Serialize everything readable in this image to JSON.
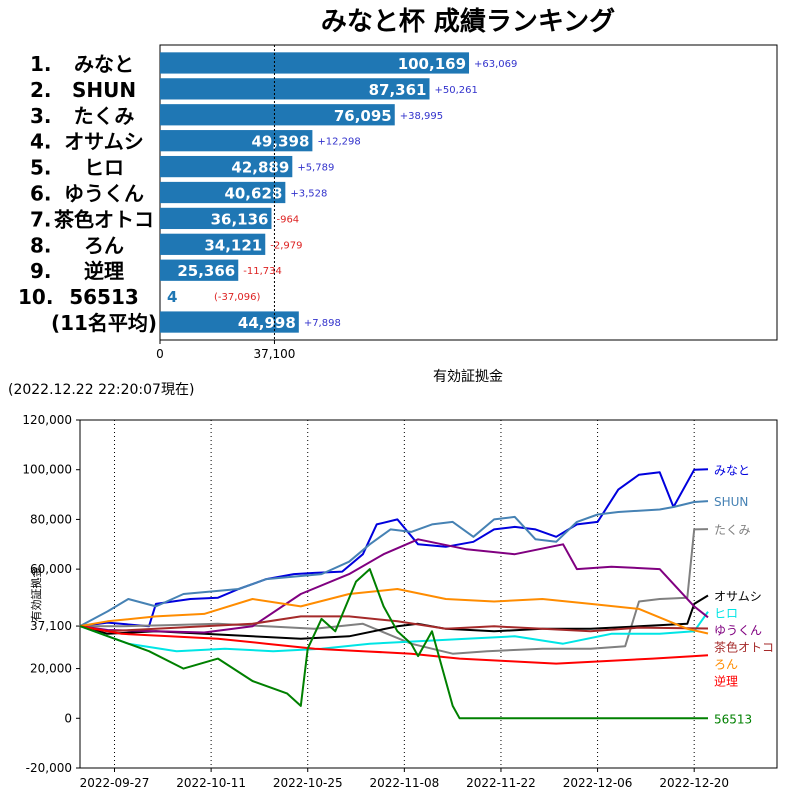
{
  "chart_data": [
    {
      "type": "bar",
      "orientation": "horizontal",
      "title": "みなと杯 成績ランキング",
      "xlabel": "有効証拠金",
      "xlim": [
        0,
        200000
      ],
      "x_ticks": [
        0,
        37100
      ],
      "x_tick_labels": [
        "0",
        "37,100"
      ],
      "reference_line": 37100,
      "bar_color": "#1f77b4",
      "rows": [
        {
          "rank": "1.",
          "name": "みなと",
          "value": 100169,
          "value_label": "100,169",
          "diff": "+63,069",
          "diff_color": "#3333cc"
        },
        {
          "rank": "2.",
          "name": "SHUN",
          "value": 87361,
          "value_label": "87,361",
          "diff": "+50,261",
          "diff_color": "#3333cc"
        },
        {
          "rank": "3.",
          "name": "たくみ",
          "value": 76095,
          "value_label": "76,095",
          "diff": "+38,995",
          "diff_color": "#3333cc"
        },
        {
          "rank": "4.",
          "name": "オサムシ",
          "value": 49398,
          "value_label": "49,398",
          "diff": "+12,298",
          "diff_color": "#3333cc"
        },
        {
          "rank": "5.",
          "name": "ヒロ",
          "value": 42889,
          "value_label": "42,889",
          "diff": "+5,789",
          "diff_color": "#3333cc"
        },
        {
          "rank": "6.",
          "name": "ゆうくん",
          "value": 40628,
          "value_label": "40,628",
          "diff": "+3,528",
          "diff_color": "#3333cc"
        },
        {
          "rank": "7.",
          "name": "茶色オトコ",
          "value": 36136,
          "value_label": "36,136",
          "diff": "-964",
          "diff_color": "#dd2222"
        },
        {
          "rank": "8.",
          "name": "ろん",
          "value": 34121,
          "value_label": "34,121",
          "diff": "-2,979",
          "diff_color": "#dd2222"
        },
        {
          "rank": "9.",
          "name": "逆理",
          "value": 25366,
          "value_label": "25,366",
          "diff": "-11,734",
          "diff_color": "#dd2222"
        },
        {
          "rank": "10.",
          "name": "56513",
          "value": 4,
          "value_label": "4",
          "diff": "(-37,096)",
          "diff_color": "#dd2222"
        },
        {
          "rank": "",
          "name": "(11名平均)",
          "value": 44998,
          "value_label": "44,998",
          "diff": "+7,898",
          "diff_color": "#3333cc"
        }
      ]
    },
    {
      "type": "line",
      "timestamp": "(2022.12.22 22:20:07現在)",
      "ylabel": "有効証拠金",
      "ylim": [
        -20000,
        120000
      ],
      "y_ticks": [
        -20000,
        0,
        20000,
        37100,
        60000,
        80000,
        100000,
        120000
      ],
      "y_tick_labels": [
        "-20,000",
        "0",
        "20,000",
        "37,100",
        "60,000",
        "80,000",
        "100,000",
        "120,000"
      ],
      "xlim": [
        "2022-09-22",
        "2023-01-01"
      ],
      "x_ticks": [
        "2022-09-27",
        "2022-10-11",
        "2022-10-25",
        "2022-11-08",
        "2022-11-22",
        "2022-12-06",
        "2022-12-20"
      ],
      "series": [
        {
          "name": "みなと",
          "color": "#0000dd",
          "x": [
            "2022-09-22",
            "2022-09-26",
            "2022-10-02",
            "2022-10-03",
            "2022-10-08",
            "2022-10-12",
            "2022-10-15",
            "2022-10-19",
            "2022-10-23",
            "2022-10-26",
            "2022-10-30",
            "2022-11-02",
            "2022-11-04",
            "2022-11-07",
            "2022-11-10",
            "2022-11-14",
            "2022-11-18",
            "2022-11-21",
            "2022-11-24",
            "2022-11-27",
            "2022-11-30",
            "2022-12-03",
            "2022-12-06",
            "2022-12-09",
            "2022-12-12",
            "2022-12-15",
            "2022-12-17",
            "2022-12-20",
            "2022-12-22"
          ],
          "y": [
            37100,
            38500,
            37000,
            46000,
            48000,
            48500,
            52000,
            56000,
            58000,
            58500,
            59000,
            66000,
            78000,
            80000,
            70000,
            69000,
            71000,
            76000,
            77000,
            76000,
            73000,
            78000,
            79000,
            92000,
            98000,
            99000,
            85000,
            100000,
            100169
          ]
        },
        {
          "name": "SHUN",
          "color": "#4682b4",
          "x": [
            "2022-09-22",
            "2022-09-26",
            "2022-09-29",
            "2022-10-03",
            "2022-10-07",
            "2022-10-11",
            "2022-10-15",
            "2022-10-19",
            "2022-10-23",
            "2022-10-27",
            "2022-10-31",
            "2022-11-03",
            "2022-11-06",
            "2022-11-09",
            "2022-11-12",
            "2022-11-15",
            "2022-11-18",
            "2022-11-21",
            "2022-11-24",
            "2022-11-27",
            "2022-11-30",
            "2022-12-03",
            "2022-12-06",
            "2022-12-09",
            "2022-12-12",
            "2022-12-15",
            "2022-12-17",
            "2022-12-20",
            "2022-12-22"
          ],
          "y": [
            37100,
            43000,
            48000,
            45000,
            50000,
            51000,
            52000,
            56000,
            57000,
            58000,
            63000,
            70000,
            76000,
            75000,
            78000,
            79000,
            73000,
            80000,
            81000,
            72000,
            71000,
            79000,
            82000,
            83000,
            83500,
            84000,
            85000,
            87000,
            87361
          ]
        },
        {
          "name": "たくみ",
          "color": "#808080",
          "x": [
            "2022-09-22",
            "2022-09-28",
            "2022-10-05",
            "2022-10-12",
            "2022-10-19",
            "2022-10-26",
            "2022-11-02",
            "2022-11-09",
            "2022-11-15",
            "2022-11-20",
            "2022-11-28",
            "2022-12-05",
            "2022-12-10",
            "2022-12-12",
            "2022-12-15",
            "2022-12-19",
            "2022-12-20",
            "2022-12-22"
          ],
          "y": [
            37100,
            37000,
            37500,
            38000,
            37000,
            36000,
            38000,
            30000,
            26000,
            27000,
            28000,
            28000,
            29000,
            47000,
            48000,
            48500,
            76000,
            76095
          ]
        },
        {
          "name": "オサムシ",
          "color": "#000000",
          "x": [
            "2022-09-22",
            "2022-09-26",
            "2022-10-03",
            "2022-10-10",
            "2022-10-17",
            "2022-10-24",
            "2022-10-31",
            "2022-11-07",
            "2022-11-10",
            "2022-11-14",
            "2022-11-21",
            "2022-11-28",
            "2022-12-05",
            "2022-12-12",
            "2022-12-19",
            "2022-12-20",
            "2022-12-22"
          ],
          "y": [
            37100,
            34000,
            35000,
            34000,
            33000,
            32000,
            33000,
            37000,
            38000,
            36000,
            35000,
            36000,
            36000,
            37000,
            38000,
            46000,
            49398
          ]
        },
        {
          "name": "ヒロ",
          "color": "#00e5e5",
          "x": [
            "2022-09-22",
            "2022-09-29",
            "2022-10-06",
            "2022-10-13",
            "2022-10-20",
            "2022-10-27",
            "2022-11-03",
            "2022-11-10",
            "2022-11-17",
            "2022-11-24",
            "2022-12-01",
            "2022-12-08",
            "2022-12-15",
            "2022-12-20",
            "2022-12-22"
          ],
          "y": [
            37100,
            30000,
            27000,
            28000,
            27000,
            28000,
            30000,
            31000,
            32000,
            33000,
            30000,
            34000,
            34000,
            35000,
            42889
          ]
        },
        {
          "name": "ゆうくん",
          "color": "#800080",
          "x": [
            "2022-09-22",
            "2022-09-26",
            "2022-10-03",
            "2022-10-10",
            "2022-10-17",
            "2022-10-24",
            "2022-10-31",
            "2022-11-05",
            "2022-11-10",
            "2022-11-17",
            "2022-11-24",
            "2022-12-01",
            "2022-12-03",
            "2022-12-08",
            "2022-12-15",
            "2022-12-20",
            "2022-12-22"
          ],
          "y": [
            37100,
            35500,
            35000,
            34500,
            37000,
            50000,
            58000,
            66000,
            72000,
            68000,
            66000,
            70000,
            60000,
            61000,
            60000,
            45000,
            40628
          ]
        },
        {
          "name": "茶色オトコ",
          "color": "#a52a2a",
          "x": [
            "2022-09-22",
            "2022-09-26",
            "2022-10-03",
            "2022-10-10",
            "2022-10-17",
            "2022-10-24",
            "2022-10-31",
            "2022-11-07",
            "2022-11-14",
            "2022-11-21",
            "2022-11-28",
            "2022-12-05",
            "2022-12-12",
            "2022-12-19",
            "2022-12-22"
          ],
          "y": [
            37100,
            35000,
            36000,
            37000,
            38000,
            41000,
            41000,
            39000,
            36000,
            37000,
            36000,
            35000,
            36500,
            36200,
            36136
          ]
        },
        {
          "name": "ろん",
          "color": "#ff8c00",
          "x": [
            "2022-09-22",
            "2022-09-26",
            "2022-10-03",
            "2022-10-10",
            "2022-10-17",
            "2022-10-24",
            "2022-10-31",
            "2022-11-07",
            "2022-11-14",
            "2022-11-21",
            "2022-11-28",
            "2022-12-05",
            "2022-12-12",
            "2022-12-19",
            "2022-12-22"
          ],
          "y": [
            37100,
            39000,
            41000,
            42000,
            48000,
            45000,
            50000,
            52000,
            48000,
            47000,
            48000,
            46000,
            44000,
            36000,
            34121
          ]
        },
        {
          "name": "逆理",
          "color": "#ff0000",
          "x": [
            "2022-09-22",
            "2022-09-28",
            "2022-10-05",
            "2022-10-12",
            "2022-10-19",
            "2022-10-26",
            "2022-11-02",
            "2022-11-09",
            "2022-11-16",
            "2022-11-23",
            "2022-11-30",
            "2022-12-07",
            "2022-12-14",
            "2022-12-20",
            "2022-12-22"
          ],
          "y": [
            37100,
            34000,
            33000,
            32000,
            30000,
            28000,
            27000,
            26000,
            24000,
            23000,
            22000,
            23000,
            24000,
            25000,
            25366
          ]
        },
        {
          "name": "56513",
          "color": "#008000",
          "x": [
            "2022-09-22",
            "2022-09-27",
            "2022-10-02",
            "2022-10-07",
            "2022-10-12",
            "2022-10-17",
            "2022-10-22",
            "2022-10-24",
            "2022-10-25",
            "2022-10-27",
            "2022-10-29",
            "2022-11-01",
            "2022-11-03",
            "2022-11-05",
            "2022-11-07",
            "2022-11-09",
            "2022-11-10",
            "2022-11-12",
            "2022-11-15",
            "2022-11-16",
            "2022-11-20",
            "2022-12-22"
          ],
          "y": [
            37100,
            32000,
            27000,
            20000,
            24000,
            15000,
            10000,
            5000,
            28000,
            40000,
            35000,
            55000,
            60000,
            45000,
            35000,
            30000,
            25000,
            35000,
            5000,
            0,
            0,
            4
          ]
        }
      ]
    }
  ]
}
